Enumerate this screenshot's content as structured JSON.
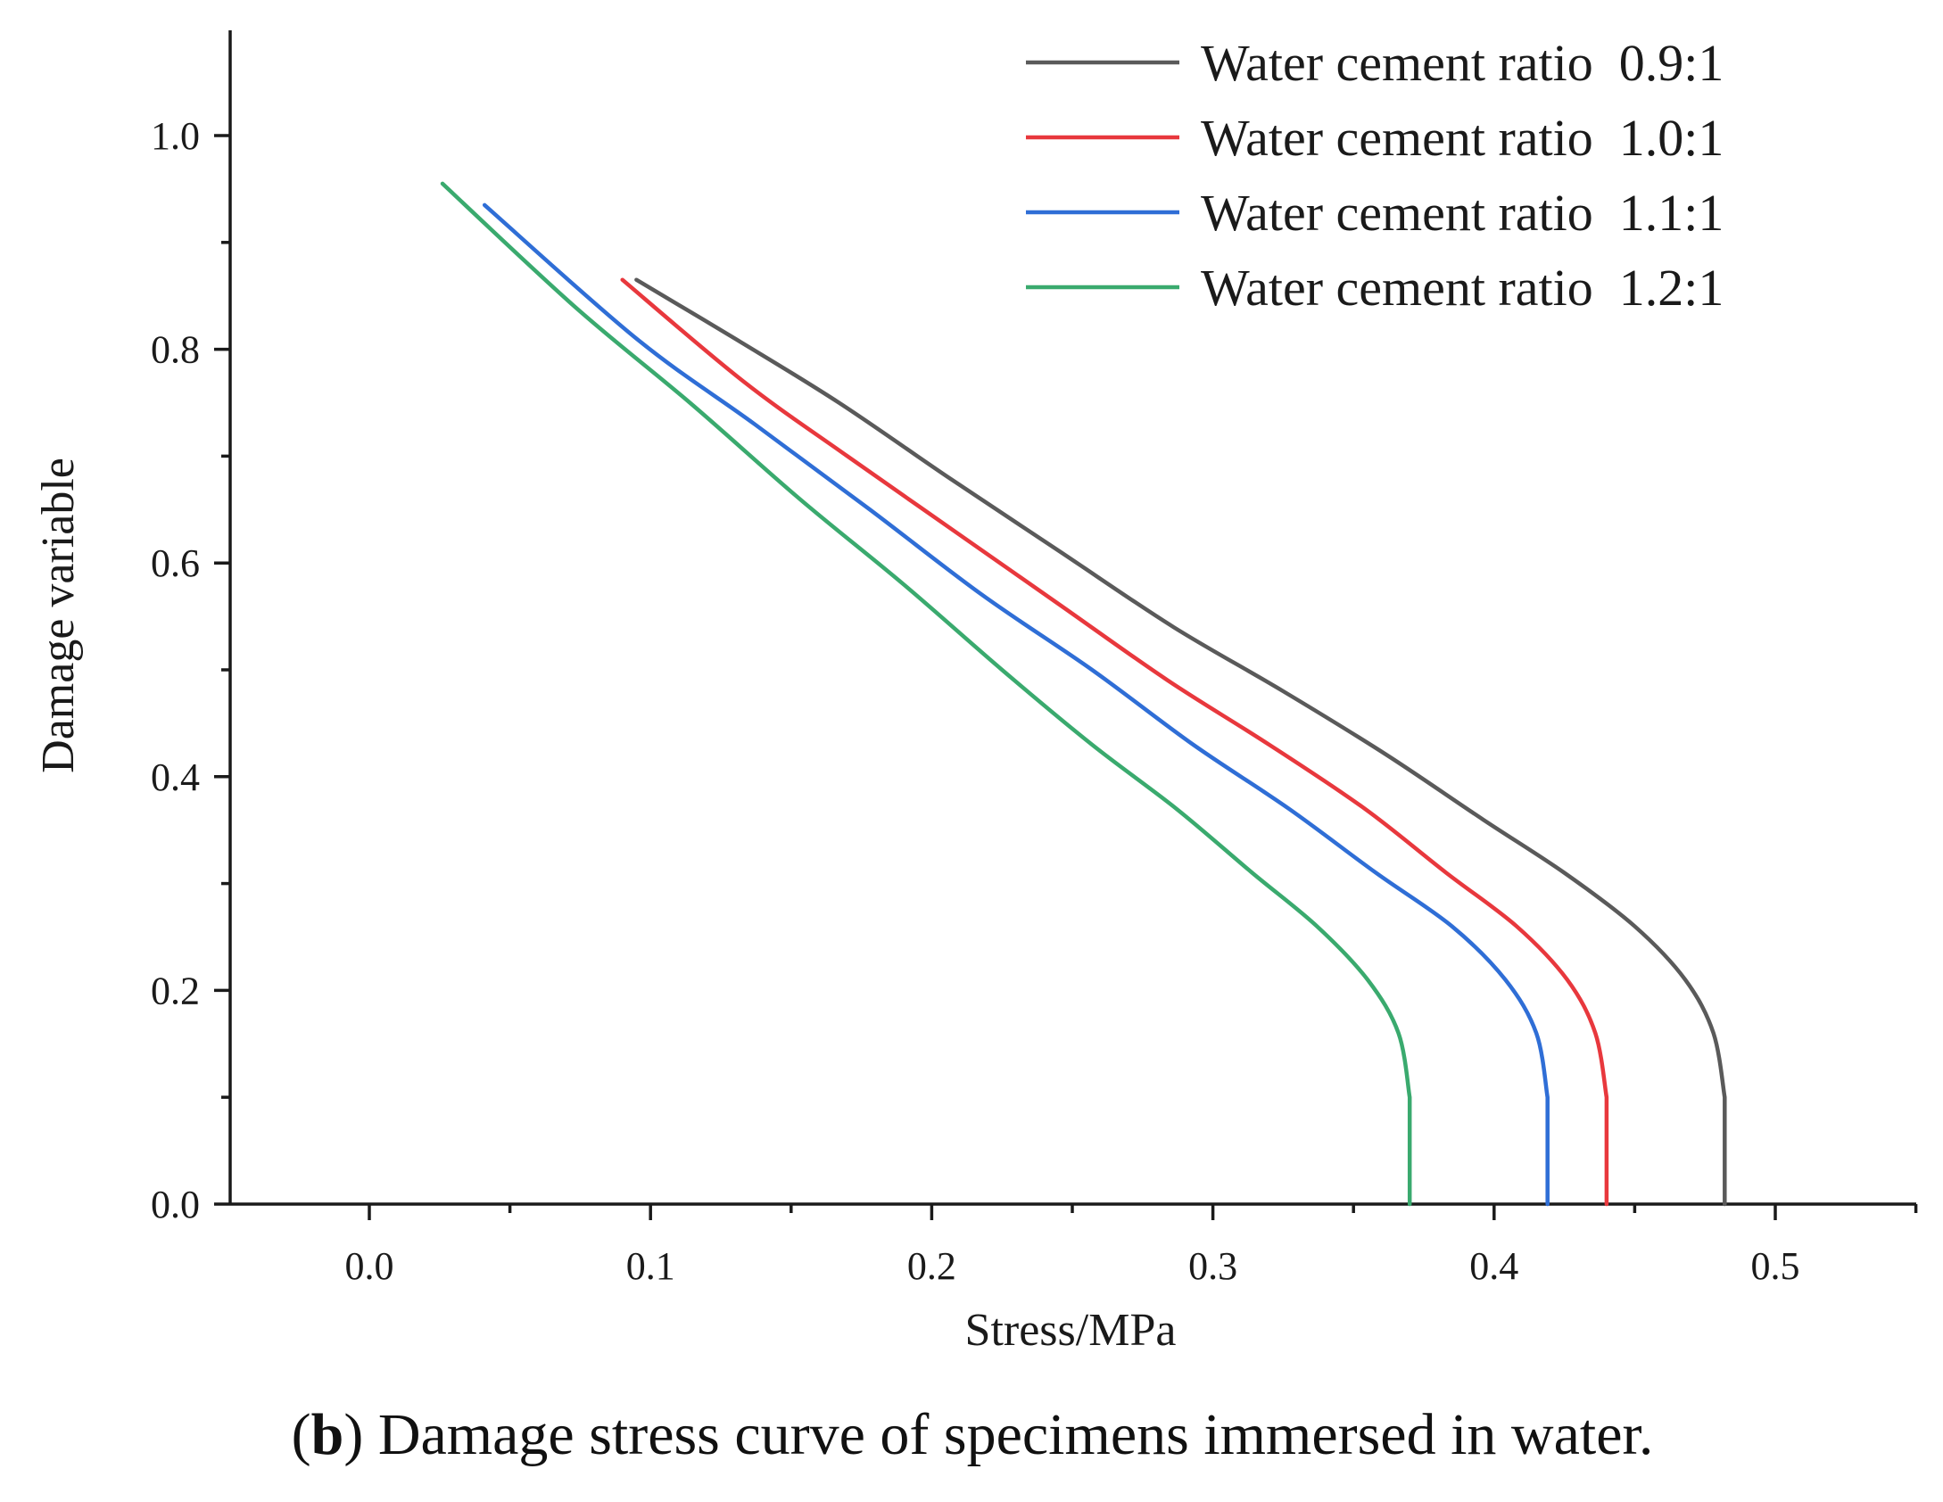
{
  "chart_data": {
    "type": "line",
    "title": "",
    "xlabel": "Stress/MPa",
    "ylabel": "Damage variable",
    "xlim": [
      -0.05,
      0.55
    ],
    "ylim": [
      0.0,
      1.1
    ],
    "xticks": [
      "0.0",
      "0.1",
      "0.2",
      "0.3",
      "0.4",
      "0.5"
    ],
    "yticks": [
      "0.0",
      "0.2",
      "0.4",
      "0.6",
      "0.8",
      "1.0"
    ],
    "legend_position": "top-right",
    "grid": false,
    "series": [
      {
        "name": "Water cement ratio  0.9:1",
        "color": "#5a5a5a",
        "x": [
          0.482,
          0.482,
          0.478,
          0.468,
          0.45,
          0.425,
          0.396,
          0.362,
          0.325,
          0.286,
          0.246,
          0.206,
          0.167,
          0.13,
          0.095
        ],
        "y": [
          0.0,
          0.1,
          0.16,
          0.21,
          0.26,
          0.31,
          0.36,
          0.42,
          0.48,
          0.54,
          0.61,
          0.68,
          0.75,
          0.81,
          0.865
        ]
      },
      {
        "name": "Water cement ratio  1.0:1",
        "color": "#e8383d",
        "x": [
          0.44,
          0.44,
          0.436,
          0.426,
          0.408,
          0.383,
          0.354,
          0.32,
          0.284,
          0.246,
          0.208,
          0.17,
          0.133,
          0.09
        ],
        "y": [
          0.0,
          0.1,
          0.16,
          0.21,
          0.26,
          0.31,
          0.37,
          0.43,
          0.49,
          0.56,
          0.63,
          0.7,
          0.77,
          0.865
        ]
      },
      {
        "name": "Water cement ratio  1.1:1",
        "color": "#2f6ed6",
        "x": [
          0.419,
          0.419,
          0.415,
          0.404,
          0.385,
          0.358,
          0.327,
          0.293,
          0.257,
          0.218,
          0.178,
          0.137,
          0.095,
          0.041
        ],
        "y": [
          0.0,
          0.1,
          0.16,
          0.21,
          0.26,
          0.31,
          0.37,
          0.43,
          0.5,
          0.57,
          0.65,
          0.73,
          0.81,
          0.935
        ]
      },
      {
        "name": "Water cement ratio  1.2:1",
        "color": "#3aaa6e",
        "x": [
          0.37,
          0.37,
          0.366,
          0.355,
          0.337,
          0.314,
          0.287,
          0.257,
          0.225,
          0.19,
          0.153,
          0.114,
          0.073,
          0.026
        ],
        "y": [
          0.0,
          0.1,
          0.16,
          0.21,
          0.26,
          0.31,
          0.37,
          0.43,
          0.5,
          0.58,
          0.66,
          0.75,
          0.84,
          0.955
        ]
      }
    ]
  },
  "caption": {
    "label": "b",
    "open_paren": "(",
    "close_paren": ")",
    "text": " Damage stress curve of specimens immersed in water."
  }
}
